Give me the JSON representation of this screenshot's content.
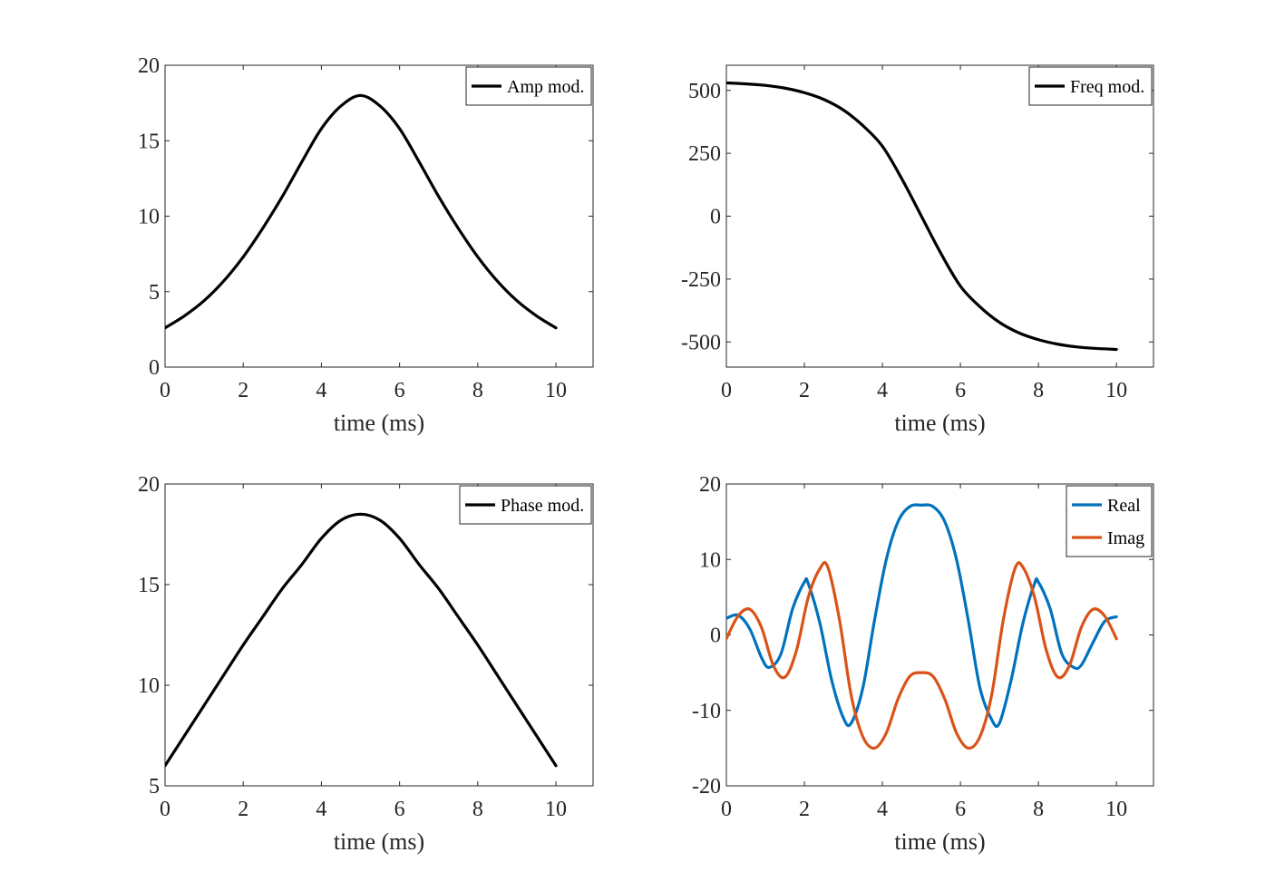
{
  "chart_data": [
    {
      "type": "line",
      "xlabel": "time (ms)",
      "ylabel": "",
      "xlim": [
        0,
        10.95
      ],
      "ylim": [
        0,
        20
      ],
      "xticks": [
        0,
        2,
        4,
        6,
        8,
        10
      ],
      "yticks": [
        0,
        5,
        10,
        15,
        20
      ],
      "xticklabels": [
        "0",
        "2",
        "4",
        "6",
        "8",
        "10"
      ],
      "yticklabels": [
        "0",
        "5",
        "10",
        "15",
        "20"
      ],
      "legend_position": "top-right",
      "series": [
        {
          "name": "Amp mod.",
          "color": "#000000",
          "x": [
            0,
            0.5,
            1,
            1.5,
            2,
            2.5,
            3,
            3.5,
            4,
            4.5,
            5,
            5.5,
            6,
            6.5,
            7,
            7.5,
            8,
            8.5,
            9,
            9.5,
            10
          ],
          "y": [
            2.6,
            3.4,
            4.4,
            5.7,
            7.3,
            9.2,
            11.3,
            13.6,
            15.8,
            17.3,
            18.0,
            17.3,
            15.8,
            13.6,
            11.3,
            9.2,
            7.3,
            5.7,
            4.4,
            3.4,
            2.6
          ]
        }
      ]
    },
    {
      "type": "line",
      "xlabel": "time (ms)",
      "ylabel": "",
      "xlim": [
        0,
        10.95
      ],
      "ylim": [
        -600,
        600
      ],
      "xticks": [
        0,
        2,
        4,
        6,
        8,
        10
      ],
      "yticks": [
        500,
        250,
        0,
        -250,
        -500
      ],
      "xticklabels": [
        "0",
        "2",
        "4",
        "6",
        "8",
        "10"
      ],
      "yticklabels": [
        "500",
        "250",
        "0",
        "-250",
        "-500"
      ],
      "legend_position": "top-right",
      "series": [
        {
          "name": "Freq mod.",
          "color": "#000000",
          "x": [
            0,
            0.5,
            1,
            1.5,
            2,
            2.5,
            3,
            3.5,
            4,
            4.5,
            5,
            5.5,
            6,
            6.5,
            7,
            7.5,
            8,
            8.5,
            9,
            9.5,
            10
          ],
          "y": [
            530,
            526,
            520,
            509,
            491,
            464,
            422,
            360,
            278,
            148,
            0,
            -148,
            -278,
            -360,
            -422,
            -464,
            -491,
            -509,
            -520,
            -526,
            -530
          ]
        }
      ]
    },
    {
      "type": "line",
      "xlabel": "time (ms)",
      "ylabel": "",
      "xlim": [
        0,
        10.95
      ],
      "ylim": [
        5,
        20
      ],
      "xticks": [
        0,
        2,
        4,
        6,
        8,
        10
      ],
      "yticks": [
        5,
        10,
        15,
        20
      ],
      "xticklabels": [
        "0",
        "2",
        "4",
        "6",
        "8",
        "10"
      ],
      "yticklabels": [
        "5",
        "10",
        "15",
        "20"
      ],
      "legend_position": "top-right",
      "series": [
        {
          "name": "Phase mod.",
          "color": "#000000",
          "x": [
            0,
            0.5,
            1,
            1.5,
            2,
            2.5,
            3,
            3.5,
            4,
            4.5,
            5,
            5.5,
            6,
            6.5,
            7,
            7.5,
            8,
            8.5,
            9,
            9.5,
            10
          ],
          "y": [
            6.0,
            7.5,
            9.0,
            10.5,
            12.0,
            13.4,
            14.8,
            16.0,
            17.3,
            18.2,
            18.5,
            18.2,
            17.3,
            16.0,
            14.8,
            13.4,
            12.0,
            10.5,
            9.0,
            7.5,
            6.0
          ]
        }
      ]
    },
    {
      "type": "line",
      "xlabel": "time (ms)",
      "ylabel": "",
      "xlim": [
        0,
        10.95
      ],
      "ylim": [
        -20,
        20
      ],
      "xticks": [
        0,
        2,
        4,
        6,
        8,
        10
      ],
      "yticks": [
        20,
        10,
        0,
        -10,
        -20
      ],
      "xticklabels": [
        "0",
        "2",
        "4",
        "6",
        "8",
        "10"
      ],
      "yticklabels": [
        "20",
        "10",
        "0",
        "-10",
        "-20"
      ],
      "legend_position": "top-right",
      "series": [
        {
          "name": "Real",
          "color": "#0072BD",
          "x": [
            0,
            0.3,
            0.6,
            0.9,
            1.1,
            1.4,
            1.7,
            2.0,
            2.1,
            2.4,
            2.7,
            3.0,
            3.2,
            3.5,
            3.8,
            4.1,
            4.4,
            4.7,
            5.0,
            5.3,
            5.6,
            5.9,
            6.2,
            6.5,
            6.8,
            7.0,
            7.3,
            7.6,
            7.9,
            8.0,
            8.3,
            8.6,
            8.9,
            9.1,
            9.4,
            9.7,
            10.0
          ],
          "y": [
            2.2,
            2.6,
            0.8,
            -3.0,
            -4.3,
            -2.5,
            3.5,
            7.0,
            6.8,
            1.5,
            -6.0,
            -11.0,
            -11.7,
            -7.0,
            2.0,
            10.0,
            15.0,
            17.0,
            17.2,
            17.0,
            15.0,
            10.0,
            2.0,
            -7.0,
            -11.2,
            -11.7,
            -6.0,
            1.5,
            6.8,
            7.0,
            3.5,
            -2.5,
            -4.3,
            -4.0,
            -1.0,
            1.8,
            2.4
          ]
        },
        {
          "name": "Imag",
          "color": "#D95319",
          "x": [
            0,
            0.3,
            0.6,
            0.9,
            1.2,
            1.5,
            1.8,
            2.1,
            2.4,
            2.6,
            2.9,
            3.2,
            3.5,
            3.8,
            4.1,
            4.4,
            4.7,
            5.0,
            5.3,
            5.6,
            5.9,
            6.2,
            6.5,
            6.8,
            7.1,
            7.4,
            7.6,
            7.9,
            8.2,
            8.5,
            8.8,
            9.1,
            9.4,
            9.7,
            10.0
          ],
          "y": [
            -0.5,
            2.5,
            3.4,
            1.0,
            -4.0,
            -5.6,
            -2.0,
            5.0,
            8.8,
            9.0,
            2.0,
            -8.0,
            -13.5,
            -15.0,
            -13.0,
            -8.5,
            -5.5,
            -5.0,
            -5.5,
            -8.5,
            -13.0,
            -15.0,
            -13.5,
            -8.0,
            2.0,
            8.8,
            9.0,
            5.0,
            -2.0,
            -5.6,
            -4.0,
            1.0,
            3.4,
            2.5,
            -0.5
          ]
        }
      ]
    }
  ]
}
